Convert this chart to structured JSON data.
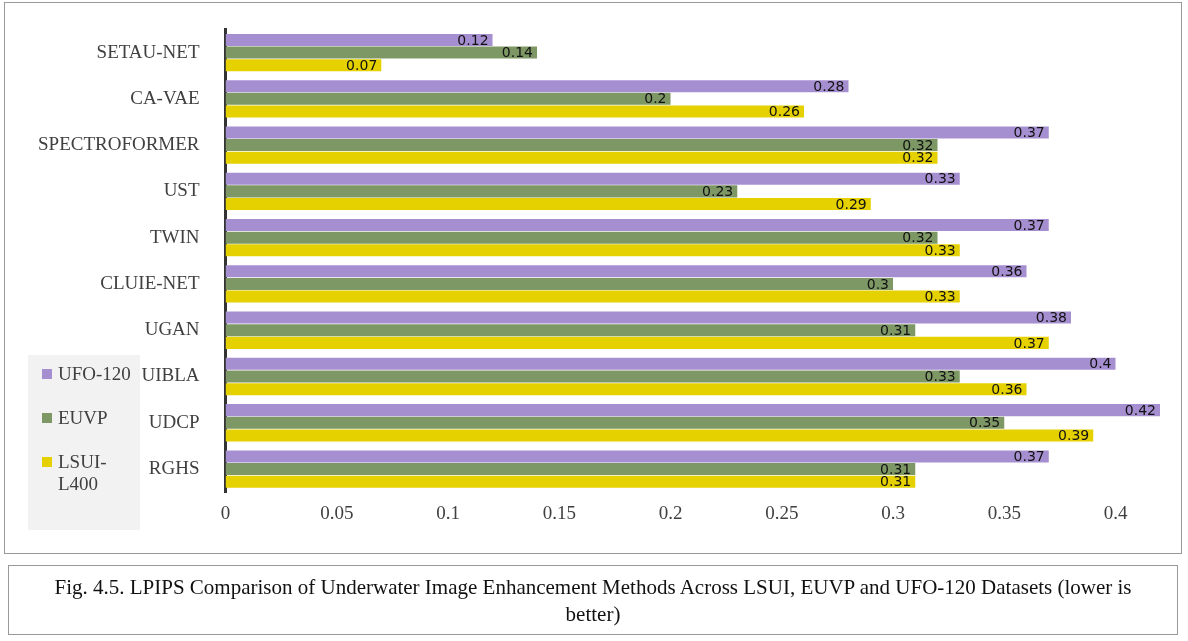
{
  "chart_data": {
    "type": "bar",
    "orientation": "horizontal",
    "categories": [
      "SETAU-NET",
      "CA-VAE",
      "SPECTROFORMER",
      "UST",
      "TWIN",
      "CLUIE-NET",
      "UGAN",
      "UIBLA",
      "UDCP",
      "RGHS"
    ],
    "series": [
      {
        "name": "UFO-120",
        "color": "#a68fd0",
        "values": [
          0.12,
          0.28,
          0.37,
          0.33,
          0.37,
          0.36,
          0.38,
          0.4,
          0.42,
          0.37
        ]
      },
      {
        "name": "EUVP",
        "color": "#7e9865",
        "values": [
          0.14,
          0.2,
          0.32,
          0.23,
          0.32,
          0.3,
          0.31,
          0.33,
          0.35,
          0.31
        ]
      },
      {
        "name": "LSUI-L400",
        "color": "#e5d000",
        "values": [
          0.07,
          0.26,
          0.32,
          0.29,
          0.33,
          0.33,
          0.37,
          0.36,
          0.39,
          0.31
        ]
      }
    ],
    "xlim": [
      0,
      0.42
    ],
    "xticks": [
      0,
      0.05,
      0.1,
      0.15,
      0.2,
      0.25,
      0.3,
      0.35,
      0.4
    ],
    "grid": false,
    "legend": "left",
    "data_labels": true,
    "annotations": [
      "Fig. 4.5. LPIPS Comparison of Underwater Image Enhancement Methods Across LSUI, EUVP and UFO-120 Datasets (lower is better)"
    ]
  }
}
